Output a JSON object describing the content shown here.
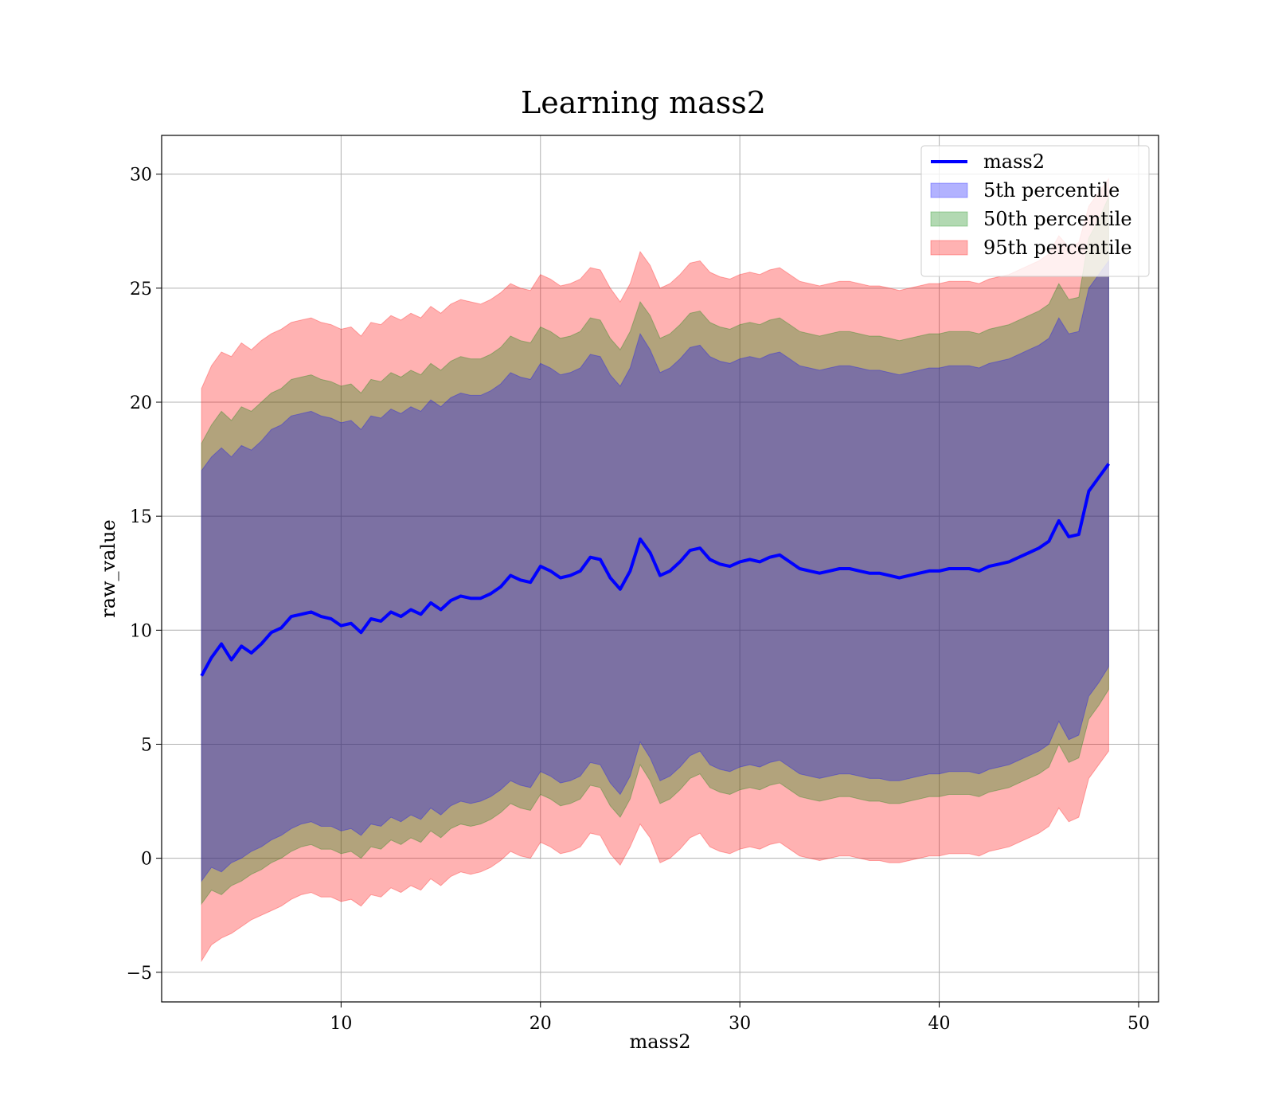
{
  "chart_data": {
    "type": "area",
    "title": "Learning mass2",
    "xlabel": "mass2",
    "ylabel": "raw_value",
    "xlim": [
      1,
      51
    ],
    "ylim": [
      -6.3,
      31.7
    ],
    "xticks": [
      10,
      20,
      30,
      40,
      50
    ],
    "yticks": [
      -5,
      0,
      5,
      10,
      15,
      20,
      25,
      30
    ],
    "xtick_labels": [
      "10",
      "20",
      "30",
      "40",
      "50"
    ],
    "ytick_labels": [
      "−5",
      "0",
      "5",
      "10",
      "15",
      "20",
      "25",
      "30"
    ],
    "grid": true,
    "legend_position": "top-right",
    "x": [
      3.0,
      3.5,
      4.0,
      4.5,
      5.0,
      5.5,
      6.0,
      6.5,
      7.0,
      7.5,
      8.0,
      8.5,
      9.0,
      9.5,
      10.0,
      10.5,
      11.0,
      11.5,
      12.0,
      12.5,
      13.0,
      13.5,
      14.0,
      14.5,
      15.0,
      15.5,
      16.0,
      16.5,
      17.0,
      17.5,
      18.0,
      18.5,
      19.0,
      19.5,
      20.0,
      20.5,
      21.0,
      21.5,
      22.0,
      22.5,
      23.0,
      23.5,
      24.0,
      24.5,
      25.0,
      25.5,
      26.0,
      26.5,
      27.0,
      27.5,
      28.0,
      28.5,
      29.0,
      29.5,
      30.0,
      30.5,
      31.0,
      31.5,
      32.0,
      32.5,
      33.0,
      33.5,
      34.0,
      34.5,
      35.0,
      35.5,
      36.0,
      36.5,
      37.0,
      37.5,
      38.0,
      38.5,
      39.0,
      39.5,
      40.0,
      40.5,
      41.0,
      41.5,
      42.0,
      42.5,
      43.0,
      43.5,
      44.0,
      44.5,
      45.0,
      45.5,
      46.0,
      46.5,
      47.0,
      47.5,
      48.0,
      48.5
    ],
    "series": [
      {
        "name": "mass2",
        "color": "#0000ff",
        "values": [
          8.0,
          8.8,
          9.4,
          8.7,
          9.3,
          9.0,
          9.4,
          9.9,
          10.1,
          10.6,
          10.7,
          10.8,
          10.6,
          10.5,
          10.2,
          10.3,
          9.9,
          10.5,
          10.4,
          10.8,
          10.6,
          10.9,
          10.7,
          11.2,
          10.9,
          11.3,
          11.5,
          11.4,
          11.4,
          11.6,
          11.9,
          12.4,
          12.2,
          12.1,
          12.8,
          12.6,
          12.3,
          12.4,
          12.6,
          13.2,
          13.1,
          12.3,
          11.8,
          12.6,
          14.0,
          13.4,
          12.4,
          12.6,
          13.0,
          13.5,
          13.6,
          13.1,
          12.9,
          12.8,
          13.0,
          13.1,
          13.0,
          13.2,
          13.3,
          13.0,
          12.7,
          12.6,
          12.5,
          12.6,
          12.7,
          12.7,
          12.6,
          12.5,
          12.5,
          12.4,
          12.3,
          12.4,
          12.5,
          12.6,
          12.6,
          12.7,
          12.7,
          12.7,
          12.6,
          12.8,
          12.9,
          13.0,
          13.2,
          13.4,
          13.6,
          13.9,
          14.8,
          14.1,
          14.2,
          16.1,
          16.7,
          17.3
        ]
      },
      {
        "name": "5th percentile",
        "color": "#0000ff",
        "lower": [
          -1.0,
          -0.4,
          -0.6,
          -0.2,
          0.0,
          0.3,
          0.5,
          0.8,
          1.0,
          1.3,
          1.5,
          1.6,
          1.4,
          1.4,
          1.2,
          1.3,
          1.0,
          1.5,
          1.4,
          1.8,
          1.6,
          1.9,
          1.7,
          2.2,
          1.9,
          2.3,
          2.5,
          2.4,
          2.5,
          2.7,
          3.0,
          3.4,
          3.2,
          3.1,
          3.8,
          3.6,
          3.3,
          3.4,
          3.6,
          4.2,
          4.1,
          3.3,
          2.8,
          3.6,
          5.1,
          4.4,
          3.4,
          3.6,
          4.0,
          4.5,
          4.7,
          4.1,
          3.9,
          3.8,
          4.0,
          4.1,
          4.0,
          4.2,
          4.3,
          4.0,
          3.7,
          3.6,
          3.5,
          3.6,
          3.7,
          3.7,
          3.6,
          3.5,
          3.5,
          3.4,
          3.4,
          3.5,
          3.6,
          3.7,
          3.7,
          3.8,
          3.8,
          3.8,
          3.7,
          3.9,
          4.0,
          4.1,
          4.3,
          4.5,
          4.7,
          5.0,
          6.0,
          5.2,
          5.4,
          7.1,
          7.7,
          8.4
        ],
        "upper": [
          17.0,
          17.6,
          18.0,
          17.6,
          18.1,
          17.9,
          18.3,
          18.8,
          19.0,
          19.4,
          19.5,
          19.6,
          19.4,
          19.3,
          19.1,
          19.2,
          18.8,
          19.4,
          19.3,
          19.7,
          19.5,
          19.8,
          19.6,
          20.1,
          19.8,
          20.2,
          20.4,
          20.3,
          20.3,
          20.5,
          20.8,
          21.3,
          21.1,
          21.0,
          21.7,
          21.5,
          21.2,
          21.3,
          21.5,
          22.1,
          22.0,
          21.2,
          20.7,
          21.5,
          23.0,
          22.3,
          21.3,
          21.5,
          21.9,
          22.4,
          22.5,
          22.0,
          21.8,
          21.7,
          21.9,
          22.0,
          21.9,
          22.1,
          22.2,
          21.9,
          21.6,
          21.5,
          21.4,
          21.5,
          21.6,
          21.6,
          21.5,
          21.4,
          21.4,
          21.3,
          21.2,
          21.3,
          21.4,
          21.5,
          21.5,
          21.6,
          21.6,
          21.6,
          21.5,
          21.7,
          21.8,
          21.9,
          22.1,
          22.3,
          22.5,
          22.8,
          23.7,
          23.0,
          23.1,
          25.0,
          25.6,
          26.2
        ]
      },
      {
        "name": "50th percentile",
        "color": "#008000",
        "lower": [
          -2.0,
          -1.4,
          -1.6,
          -1.2,
          -1.0,
          -0.7,
          -0.5,
          -0.2,
          0.0,
          0.3,
          0.5,
          0.6,
          0.4,
          0.4,
          0.2,
          0.3,
          0.0,
          0.5,
          0.4,
          0.8,
          0.6,
          0.9,
          0.7,
          1.2,
          0.9,
          1.3,
          1.5,
          1.4,
          1.5,
          1.7,
          2.0,
          2.4,
          2.2,
          2.1,
          2.8,
          2.6,
          2.3,
          2.4,
          2.6,
          3.2,
          3.1,
          2.3,
          1.8,
          2.6,
          4.1,
          3.4,
          2.4,
          2.6,
          3.0,
          3.5,
          3.7,
          3.1,
          2.9,
          2.8,
          3.0,
          3.1,
          3.0,
          3.2,
          3.3,
          3.0,
          2.7,
          2.6,
          2.5,
          2.6,
          2.7,
          2.7,
          2.6,
          2.5,
          2.5,
          2.4,
          2.4,
          2.5,
          2.6,
          2.7,
          2.7,
          2.8,
          2.8,
          2.8,
          2.7,
          2.9,
          3.0,
          3.1,
          3.3,
          3.5,
          3.7,
          4.0,
          5.0,
          4.2,
          4.4,
          6.1,
          6.7,
          7.4
        ],
        "upper": [
          18.2,
          19.0,
          19.6,
          19.2,
          19.8,
          19.6,
          20.0,
          20.4,
          20.6,
          21.0,
          21.1,
          21.2,
          21.0,
          20.9,
          20.7,
          20.8,
          20.4,
          21.0,
          20.9,
          21.3,
          21.1,
          21.4,
          21.2,
          21.7,
          21.4,
          21.8,
          22.0,
          21.9,
          21.9,
          22.1,
          22.4,
          22.9,
          22.7,
          22.6,
          23.3,
          23.1,
          22.8,
          22.9,
          23.1,
          23.7,
          23.6,
          22.8,
          22.3,
          23.1,
          24.4,
          23.8,
          22.8,
          23.0,
          23.4,
          23.9,
          24.0,
          23.5,
          23.3,
          23.2,
          23.4,
          23.5,
          23.4,
          23.6,
          23.7,
          23.4,
          23.1,
          23.0,
          22.9,
          23.0,
          23.1,
          23.1,
          23.0,
          22.9,
          22.9,
          22.8,
          22.7,
          22.8,
          22.9,
          23.0,
          23.0,
          23.1,
          23.1,
          23.1,
          23.0,
          23.2,
          23.3,
          23.4,
          23.6,
          23.8,
          24.0,
          24.3,
          25.2,
          24.5,
          24.6,
          27.2,
          28.0,
          29.0
        ]
      },
      {
        "name": "95th percentile",
        "color": "#ff0000",
        "lower": [
          -4.5,
          -3.8,
          -3.5,
          -3.3,
          -3.0,
          -2.7,
          -2.5,
          -2.3,
          -2.1,
          -1.8,
          -1.6,
          -1.5,
          -1.7,
          -1.7,
          -1.9,
          -1.8,
          -2.1,
          -1.6,
          -1.7,
          -1.3,
          -1.5,
          -1.2,
          -1.4,
          -0.9,
          -1.2,
          -0.8,
          -0.6,
          -0.7,
          -0.6,
          -0.4,
          -0.1,
          0.3,
          0.1,
          0.0,
          0.7,
          0.5,
          0.2,
          0.3,
          0.5,
          1.1,
          1.0,
          0.2,
          -0.3,
          0.5,
          1.5,
          0.9,
          -0.2,
          0.0,
          0.4,
          0.9,
          1.1,
          0.5,
          0.3,
          0.2,
          0.4,
          0.5,
          0.4,
          0.6,
          0.7,
          0.4,
          0.1,
          0.0,
          -0.1,
          0.0,
          0.1,
          0.1,
          0.0,
          -0.1,
          -0.1,
          -0.2,
          -0.2,
          -0.1,
          0.0,
          0.1,
          0.1,
          0.2,
          0.2,
          0.2,
          0.1,
          0.3,
          0.4,
          0.5,
          0.7,
          0.9,
          1.1,
          1.4,
          2.2,
          1.6,
          1.8,
          3.5,
          4.1,
          4.7
        ],
        "upper": [
          20.6,
          21.6,
          22.2,
          22.0,
          22.6,
          22.3,
          22.7,
          23.0,
          23.2,
          23.5,
          23.6,
          23.7,
          23.5,
          23.4,
          23.2,
          23.3,
          22.9,
          23.5,
          23.4,
          23.8,
          23.6,
          23.9,
          23.7,
          24.2,
          23.9,
          24.3,
          24.5,
          24.4,
          24.3,
          24.5,
          24.8,
          25.2,
          25.0,
          24.9,
          25.6,
          25.4,
          25.1,
          25.2,
          25.4,
          25.9,
          25.8,
          25.0,
          24.4,
          25.2,
          26.6,
          26.0,
          25.0,
          25.2,
          25.6,
          26.1,
          26.2,
          25.7,
          25.5,
          25.4,
          25.6,
          25.7,
          25.6,
          25.8,
          25.9,
          25.6,
          25.3,
          25.2,
          25.1,
          25.2,
          25.3,
          25.3,
          25.2,
          25.1,
          25.1,
          25.0,
          24.9,
          25.0,
          25.1,
          25.2,
          25.2,
          25.3,
          25.3,
          25.3,
          25.2,
          25.4,
          25.5,
          25.6,
          25.8,
          26.0,
          26.2,
          26.5,
          27.3,
          26.8,
          27.0,
          28.6,
          29.2,
          29.8
        ]
      }
    ]
  }
}
